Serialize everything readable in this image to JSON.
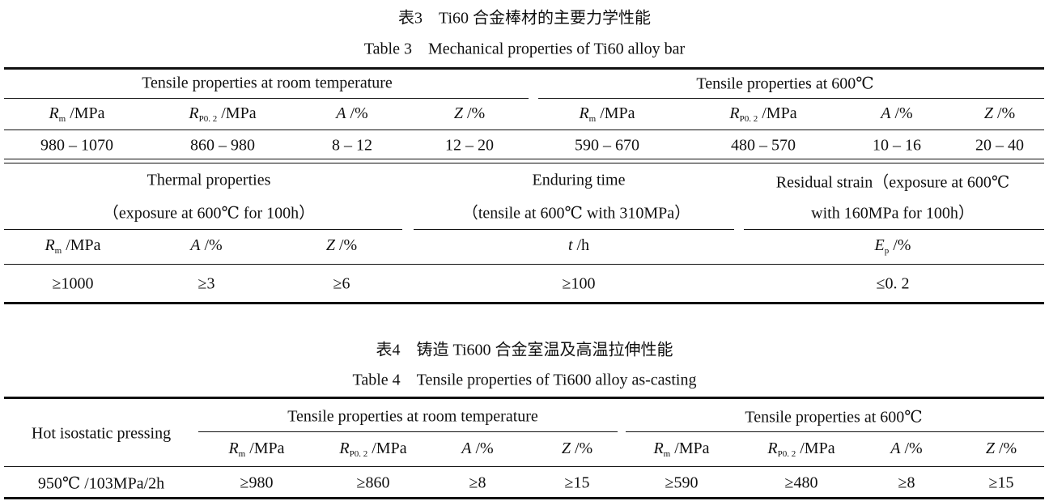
{
  "table3": {
    "title_cn": "表3　Ti60 合金棒材的主要力学性能",
    "title_en": "Table 3　Mechanical properties of Ti60 alloy bar",
    "group_room": "Tensile properties at room temperature",
    "group_600": "Tensile properties at 600℃",
    "columns": [
      {
        "sym": "R",
        "sub": "m",
        "unit": " /MPa"
      },
      {
        "sym": "R",
        "sub": "P0. 2",
        "unit": " /MPa"
      },
      {
        "sym": "A",
        "sub": "",
        "unit": " /%"
      },
      {
        "sym": "Z",
        "sub": "",
        "unit": " /%"
      },
      {
        "sym": "R",
        "sub": "m",
        "unit": " /MPa"
      },
      {
        "sym": "R",
        "sub": "P0. 2",
        "unit": " /MPa"
      },
      {
        "sym": "A",
        "sub": "",
        "unit": " /%"
      },
      {
        "sym": "Z",
        "sub": "",
        "unit": " /%"
      }
    ],
    "row": [
      "980 – 1070",
      "860 – 980",
      "8 – 12",
      "12 – 20",
      "590 – 670",
      "480 – 570",
      "10 – 16",
      "20 – 40"
    ],
    "group_thermal": [
      "Thermal properties",
      "（exposure at 600℃ for 100h）"
    ],
    "group_enduring": [
      "Enduring time",
      "（tensile at 600℃ with 310MPa）"
    ],
    "group_residual": [
      "Residual strain（exposure at 600℃",
      "with 160MPa for 100h）"
    ],
    "columns2": [
      {
        "sym": "R",
        "sub": "m",
        "unit": " /MPa"
      },
      {
        "sym": "A",
        "sub": "",
        "unit": " /%"
      },
      {
        "sym": "Z",
        "sub": "",
        "unit": " /%"
      },
      {
        "sym": "t",
        "sub": "",
        "unit": " /h"
      },
      {
        "sym": "E",
        "sub": "p",
        "unit": " /%"
      }
    ],
    "row2": [
      "≥1000",
      "≥3",
      "≥6",
      "≥100",
      "≤0. 2"
    ]
  },
  "table4": {
    "title_cn": "表4　铸造 Ti600 合金室温及高温拉伸性能",
    "title_en": "Table 4　Tensile properties of Ti600 alloy as-casting",
    "row_header": "Hot isostatic pressing",
    "group_room": "Tensile properties at room temperature",
    "group_600": "Tensile properties at 600℃",
    "columns": [
      {
        "sym": "R",
        "sub": "m",
        "unit": " /MPa"
      },
      {
        "sym": "R",
        "sub": "P0. 2",
        "unit": " /MPa"
      },
      {
        "sym": "A",
        "sub": "",
        "unit": " /%"
      },
      {
        "sym": "Z",
        "sub": "",
        "unit": " /%"
      },
      {
        "sym": "R",
        "sub": "m",
        "unit": " /MPa"
      },
      {
        "sym": "R",
        "sub": "P0. 2",
        "unit": " /MPa"
      },
      {
        "sym": "A",
        "sub": "",
        "unit": " /%"
      },
      {
        "sym": "Z",
        "sub": "",
        "unit": " /%"
      }
    ],
    "row": [
      "950℃ /103MPa/2h",
      "≥980",
      "≥860",
      "≥8",
      "≥15",
      "≥590",
      "≥480",
      "≥8",
      "≥15"
    ]
  }
}
